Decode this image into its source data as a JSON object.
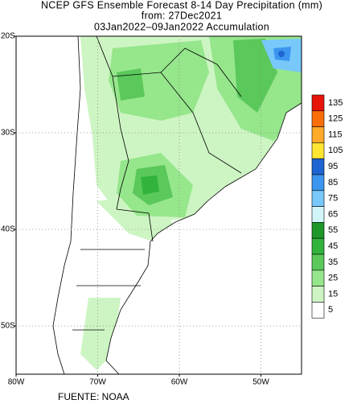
{
  "header": {
    "lines": [
      "NCEP GFS Ensemble Forecast 8-14 Day Precipitation (mm)",
      "from: 27Dec2021",
      "03Jan2022–09Jan2022 Accumulation"
    ]
  },
  "map": {
    "lat_ticks": [
      {
        "value": -20,
        "label": "20S"
      },
      {
        "value": -30,
        "label": "30S"
      },
      {
        "value": -40,
        "label": "40S"
      },
      {
        "value": -50,
        "label": "50S"
      }
    ],
    "lon_ticks": [
      {
        "value": -80,
        "label": "80W"
      },
      {
        "value": -70,
        "label": "70W"
      },
      {
        "value": -60,
        "label": "60W"
      },
      {
        "value": -50,
        "label": "50W"
      }
    ]
  },
  "legend": {
    "levels": [
      {
        "value": 135,
        "color": "#e8140a"
      },
      {
        "value": 125,
        "color": "#fa6e0a"
      },
      {
        "value": 115,
        "color": "#ffaa28"
      },
      {
        "value": 105,
        "color": "#ffe632"
      },
      {
        "value": 95,
        "color": "#1e64d2"
      },
      {
        "value": 85,
        "color": "#3c96f0"
      },
      {
        "value": 75,
        "color": "#78c8fa"
      },
      {
        "value": 65,
        "color": "#d2f5fa"
      },
      {
        "value": 55,
        "color": "#1e9628"
      },
      {
        "value": 45,
        "color": "#32b43c"
      },
      {
        "value": 35,
        "color": "#5ac85a"
      },
      {
        "value": 25,
        "color": "#96e68c"
      },
      {
        "value": 15,
        "color": "#cdf5c3"
      },
      {
        "value": 5,
        "color": "#ffffff"
      }
    ]
  },
  "footer": {
    "source": "FUENTE: NOAA"
  }
}
